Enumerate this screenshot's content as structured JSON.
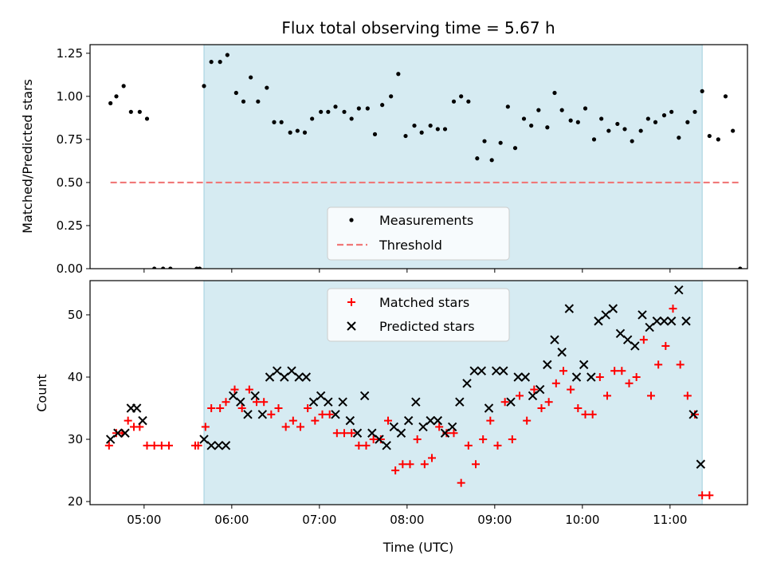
{
  "chart_data": [
    {
      "type": "scatter",
      "title": "Flux total observing time = 5.67 h",
      "xlabel": "",
      "ylabel": "Matched/Predicted stars",
      "ylim": [
        0,
        1.3
      ],
      "yticks": [
        "0.00",
        "0.25",
        "0.50",
        "0.75",
        "1.00",
        "1.25"
      ],
      "xlim": [
        "04:23",
        "11:53"
      ],
      "shaded_region": [
        "05:41",
        "11:22"
      ],
      "legend_position": "lower-center",
      "series": [
        {
          "name": "Measurements",
          "marker": "dot",
          "color": "#000000",
          "points": [
            [
              "04:37",
              0.96
            ],
            [
              "04:41",
              1.0
            ],
            [
              "04:46",
              1.06
            ],
            [
              "04:51",
              0.91
            ],
            [
              "04:57",
              0.91
            ],
            [
              "05:02",
              0.87
            ],
            [
              "05:07",
              0.0
            ],
            [
              "05:13",
              0.0
            ],
            [
              "05:18",
              0.0
            ],
            [
              "05:36",
              0.0
            ],
            [
              "05:38",
              0.0
            ],
            [
              "05:41",
              1.06
            ],
            [
              "05:46",
              1.2
            ],
            [
              "05:52",
              1.2
            ],
            [
              "05:57",
              1.24
            ],
            [
              "06:03",
              1.02
            ],
            [
              "06:08",
              0.97
            ],
            [
              "06:13",
              1.11
            ],
            [
              "06:18",
              0.97
            ],
            [
              "06:24",
              1.05
            ],
            [
              "06:29",
              0.85
            ],
            [
              "06:34",
              0.85
            ],
            [
              "06:40",
              0.79
            ],
            [
              "06:45",
              0.8
            ],
            [
              "06:50",
              0.79
            ],
            [
              "06:55",
              0.87
            ],
            [
              "07:01",
              0.91
            ],
            [
              "07:06",
              0.91
            ],
            [
              "07:11",
              0.94
            ],
            [
              "07:17",
              0.91
            ],
            [
              "07:22",
              0.87
            ],
            [
              "07:27",
              0.93
            ],
            [
              "07:33",
              0.93
            ],
            [
              "07:38",
              0.78
            ],
            [
              "07:43",
              0.95
            ],
            [
              "07:49",
              1.0
            ],
            [
              "07:54",
              1.13
            ],
            [
              "07:59",
              0.77
            ],
            [
              "08:05",
              0.83
            ],
            [
              "08:10",
              0.79
            ],
            [
              "08:16",
              0.83
            ],
            [
              "08:21",
              0.81
            ],
            [
              "08:26",
              0.81
            ],
            [
              "08:32",
              0.97
            ],
            [
              "08:37",
              1.0
            ],
            [
              "08:42",
              0.97
            ],
            [
              "08:48",
              0.64
            ],
            [
              "08:53",
              0.74
            ],
            [
              "08:58",
              0.63
            ],
            [
              "09:04",
              0.73
            ],
            [
              "09:09",
              0.94
            ],
            [
              "09:14",
              0.7
            ],
            [
              "09:20",
              0.87
            ],
            [
              "09:25",
              0.83
            ],
            [
              "09:30",
              0.92
            ],
            [
              "09:36",
              0.82
            ],
            [
              "09:41",
              1.02
            ],
            [
              "09:46",
              0.92
            ],
            [
              "09:52",
              0.86
            ],
            [
              "09:57",
              0.85
            ],
            [
              "10:02",
              0.93
            ],
            [
              "10:08",
              0.75
            ],
            [
              "10:13",
              0.87
            ],
            [
              "10:18",
              0.8
            ],
            [
              "10:24",
              0.84
            ],
            [
              "10:29",
              0.81
            ],
            [
              "10:34",
              0.74
            ],
            [
              "10:40",
              0.8
            ],
            [
              "10:45",
              0.87
            ],
            [
              "10:50",
              0.85
            ],
            [
              "10:56",
              0.89
            ],
            [
              "11:01",
              0.91
            ],
            [
              "11:06",
              0.76
            ],
            [
              "11:12",
              0.85
            ],
            [
              "11:17",
              0.91
            ],
            [
              "11:22",
              1.03
            ],
            [
              "11:27",
              0.77
            ],
            [
              "11:33",
              0.75
            ],
            [
              "11:38",
              1.0
            ],
            [
              "11:43",
              0.8
            ],
            [
              "11:48",
              0.0
            ]
          ]
        },
        {
          "name": "Threshold",
          "marker": "dashed-line",
          "color": "#f07878",
          "points": [
            [
              "04:37",
              0.5
            ],
            [
              "11:48",
              0.5
            ]
          ]
        }
      ]
    },
    {
      "type": "scatter",
      "title": "",
      "xlabel": "Time (UTC)",
      "ylabel": "Count",
      "ylim": [
        19.5,
        55.5
      ],
      "yticks": [
        "20",
        "30",
        "40",
        "50"
      ],
      "xlim": [
        "04:23",
        "11:53"
      ],
      "xticks": [
        "05:00",
        "06:00",
        "07:00",
        "08:00",
        "09:00",
        "10:00",
        "11:00"
      ],
      "shaded_region": [
        "05:41",
        "11:22"
      ],
      "legend_position": "upper-center",
      "series": [
        {
          "name": "Matched stars",
          "marker": "plus",
          "color": "#ff0000",
          "points": [
            [
              "04:36",
              29
            ],
            [
              "04:41",
              31
            ],
            [
              "04:45",
              31
            ],
            [
              "04:49",
              33
            ],
            [
              "04:53",
              32
            ],
            [
              "04:57",
              32
            ],
            [
              "05:02",
              29
            ],
            [
              "05:07",
              29
            ],
            [
              "05:12",
              29
            ],
            [
              "05:17",
              29
            ],
            [
              "05:35",
              29
            ],
            [
              "05:37",
              29
            ],
            [
              "05:42",
              32
            ],
            [
              "05:46",
              35
            ],
            [
              "05:52",
              35
            ],
            [
              "05:56",
              36
            ],
            [
              "06:02",
              38
            ],
            [
              "06:07",
              35
            ],
            [
              "06:12",
              38
            ],
            [
              "06:17",
              36
            ],
            [
              "06:22",
              36
            ],
            [
              "06:27",
              34
            ],
            [
              "06:32",
              35
            ],
            [
              "06:37",
              32
            ],
            [
              "06:42",
              33
            ],
            [
              "06:47",
              32
            ],
            [
              "06:52",
              35
            ],
            [
              "06:57",
              33
            ],
            [
              "07:02",
              34
            ],
            [
              "07:07",
              34
            ],
            [
              "07:12",
              31
            ],
            [
              "07:17",
              31
            ],
            [
              "07:22",
              31
            ],
            [
              "07:27",
              29
            ],
            [
              "07:32",
              29
            ],
            [
              "07:37",
              30
            ],
            [
              "07:42",
              30
            ],
            [
              "07:47",
              33
            ],
            [
              "07:52",
              25
            ],
            [
              "07:57",
              26
            ],
            [
              "08:02",
              26
            ],
            [
              "08:07",
              30
            ],
            [
              "08:12",
              26
            ],
            [
              "08:17",
              27
            ],
            [
              "08:22",
              32
            ],
            [
              "08:27",
              31
            ],
            [
              "08:32",
              31
            ],
            [
              "08:37",
              23
            ],
            [
              "08:42",
              29
            ],
            [
              "08:47",
              26
            ],
            [
              "08:52",
              30
            ],
            [
              "08:57",
              33
            ],
            [
              "09:02",
              29
            ],
            [
              "09:07",
              36
            ],
            [
              "09:12",
              30
            ],
            [
              "09:17",
              37
            ],
            [
              "09:22",
              33
            ],
            [
              "09:27",
              38
            ],
            [
              "09:32",
              35
            ],
            [
              "09:37",
              36
            ],
            [
              "09:42",
              39
            ],
            [
              "09:47",
              41
            ],
            [
              "09:52",
              38
            ],
            [
              "09:57",
              35
            ],
            [
              "10:02",
              34
            ],
            [
              "10:07",
              34
            ],
            [
              "10:12",
              40
            ],
            [
              "10:17",
              37
            ],
            [
              "10:22",
              41
            ],
            [
              "10:27",
              41
            ],
            [
              "10:32",
              39
            ],
            [
              "10:37",
              40
            ],
            [
              "10:42",
              46
            ],
            [
              "10:47",
              37
            ],
            [
              "10:52",
              42
            ],
            [
              "10:57",
              45
            ],
            [
              "11:02",
              51
            ],
            [
              "11:07",
              42
            ],
            [
              "11:12",
              37
            ],
            [
              "11:17",
              34
            ],
            [
              "11:22",
              21
            ],
            [
              "11:27",
              21
            ]
          ]
        },
        {
          "name": "Predicted stars",
          "marker": "cross",
          "color": "#000000",
          "points": [
            [
              "04:37",
              30
            ],
            [
              "04:42",
              31
            ],
            [
              "04:47",
              31
            ],
            [
              "04:51",
              35
            ],
            [
              "04:55",
              35
            ],
            [
              "04:59",
              33
            ],
            [
              "05:41",
              30
            ],
            [
              "05:46",
              29
            ],
            [
              "05:51",
              29
            ],
            [
              "05:56",
              29
            ],
            [
              "06:01",
              37
            ],
            [
              "06:06",
              36
            ],
            [
              "06:11",
              34
            ],
            [
              "06:16",
              37
            ],
            [
              "06:21",
              34
            ],
            [
              "06:26",
              40
            ],
            [
              "06:31",
              41
            ],
            [
              "06:36",
              40
            ],
            [
              "06:41",
              41
            ],
            [
              "06:46",
              40
            ],
            [
              "06:51",
              40
            ],
            [
              "06:56",
              36
            ],
            [
              "07:01",
              37
            ],
            [
              "07:06",
              36
            ],
            [
              "07:11",
              34
            ],
            [
              "07:16",
              36
            ],
            [
              "07:21",
              33
            ],
            [
              "07:26",
              31
            ],
            [
              "07:31",
              37
            ],
            [
              "07:36",
              31
            ],
            [
              "07:41",
              30
            ],
            [
              "07:46",
              29
            ],
            [
              "07:51",
              32
            ],
            [
              "07:56",
              31
            ],
            [
              "08:01",
              33
            ],
            [
              "08:06",
              36
            ],
            [
              "08:11",
              32
            ],
            [
              "08:16",
              33
            ],
            [
              "08:21",
              33
            ],
            [
              "08:26",
              31
            ],
            [
              "08:31",
              32
            ],
            [
              "08:36",
              36
            ],
            [
              "08:41",
              39
            ],
            [
              "08:46",
              41
            ],
            [
              "08:51",
              41
            ],
            [
              "08:56",
              35
            ],
            [
              "09:01",
              41
            ],
            [
              "09:06",
              41
            ],
            [
              "09:11",
              36
            ],
            [
              "09:16",
              40
            ],
            [
              "09:21",
              40
            ],
            [
              "09:26",
              37
            ],
            [
              "09:31",
              38
            ],
            [
              "09:36",
              42
            ],
            [
              "09:41",
              46
            ],
            [
              "09:46",
              44
            ],
            [
              "09:51",
              51
            ],
            [
              "09:56",
              40
            ],
            [
              "10:01",
              42
            ],
            [
              "10:06",
              40
            ],
            [
              "10:11",
              49
            ],
            [
              "10:16",
              50
            ],
            [
              "10:21",
              51
            ],
            [
              "10:26",
              47
            ],
            [
              "10:31",
              46
            ],
            [
              "10:36",
              45
            ],
            [
              "10:41",
              50
            ],
            [
              "10:46",
              48
            ],
            [
              "10:51",
              49
            ],
            [
              "10:56",
              49
            ],
            [
              "11:01",
              49
            ],
            [
              "11:06",
              54
            ],
            [
              "11:11",
              49
            ],
            [
              "11:16",
              34
            ],
            [
              "11:21",
              26
            ]
          ]
        }
      ]
    }
  ]
}
